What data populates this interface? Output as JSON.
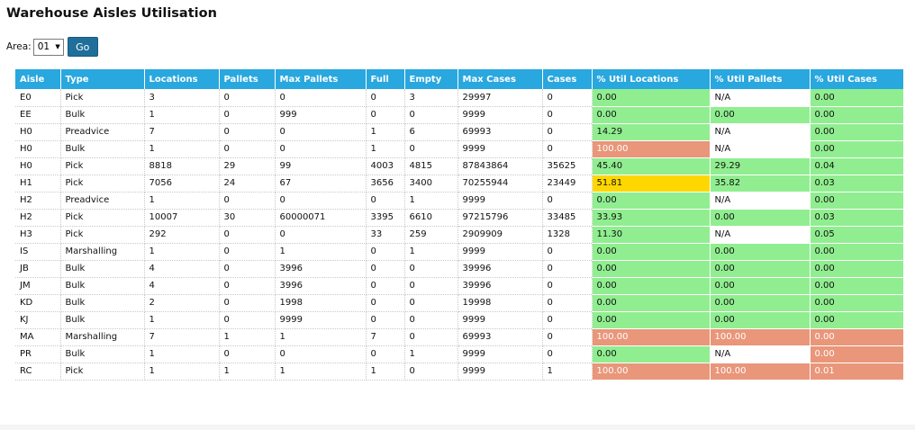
{
  "page": {
    "title": "Warehouse Aisles Utilisation",
    "area_label": "Area:",
    "area_selected": "01",
    "go_label": "Go"
  },
  "colors": {
    "header": "#29a7df",
    "green": "#90ee90",
    "red": "#e9967a",
    "yellow": "#ffd700",
    "button": "#1f6f9a"
  },
  "table": {
    "columns": [
      "Aisle",
      "Type",
      "Locations",
      "Pallets",
      "Max Pallets",
      "Full",
      "Empty",
      "Max Cases",
      "Cases",
      "% Util Locations",
      "% Util Pallets",
      "% Util Cases"
    ],
    "rows": [
      {
        "cells": [
          "E0",
          "Pick",
          "3",
          "0",
          "0",
          "0",
          "3",
          "29997",
          "0",
          "0.00",
          "N/A",
          "0.00"
        ],
        "status": [
          "green",
          "white",
          "green"
        ]
      },
      {
        "cells": [
          "EE",
          "Bulk",
          "1",
          "0",
          "999",
          "0",
          "0",
          "9999",
          "0",
          "0.00",
          "0.00",
          "0.00"
        ],
        "status": [
          "green",
          "green",
          "green"
        ]
      },
      {
        "cells": [
          "H0",
          "Preadvice",
          "7",
          "0",
          "0",
          "1",
          "6",
          "69993",
          "0",
          "14.29",
          "N/A",
          "0.00"
        ],
        "status": [
          "green",
          "white",
          "green"
        ]
      },
      {
        "cells": [
          "H0",
          "Bulk",
          "1",
          "0",
          "0",
          "1",
          "0",
          "9999",
          "0",
          "100.00",
          "N/A",
          "0.00"
        ],
        "status": [
          "red",
          "white",
          "green"
        ]
      },
      {
        "cells": [
          "H0",
          "Pick",
          "8818",
          "29",
          "99",
          "4003",
          "4815",
          "87843864",
          "35625",
          "45.40",
          "29.29",
          "0.04"
        ],
        "status": [
          "green",
          "green",
          "green"
        ]
      },
      {
        "cells": [
          "H1",
          "Pick",
          "7056",
          "24",
          "67",
          "3656",
          "3400",
          "70255944",
          "23449",
          "51.81",
          "35.82",
          "0.03"
        ],
        "status": [
          "yellow",
          "green",
          "green"
        ]
      },
      {
        "cells": [
          "H2",
          "Preadvice",
          "1",
          "0",
          "0",
          "0",
          "1",
          "9999",
          "0",
          "0.00",
          "N/A",
          "0.00"
        ],
        "status": [
          "green",
          "white",
          "green"
        ]
      },
      {
        "cells": [
          "H2",
          "Pick",
          "10007",
          "30",
          "60000071",
          "3395",
          "6610",
          "97215796",
          "33485",
          "33.93",
          "0.00",
          "0.03"
        ],
        "status": [
          "green",
          "green",
          "green"
        ]
      },
      {
        "cells": [
          "H3",
          "Pick",
          "292",
          "0",
          "0",
          "33",
          "259",
          "2909909",
          "1328",
          "11.30",
          "N/A",
          "0.05"
        ],
        "status": [
          "green",
          "white",
          "green"
        ]
      },
      {
        "cells": [
          "IS",
          "Marshalling",
          "1",
          "0",
          "1",
          "0",
          "1",
          "9999",
          "0",
          "0.00",
          "0.00",
          "0.00"
        ],
        "status": [
          "green",
          "green",
          "green"
        ]
      },
      {
        "cells": [
          "JB",
          "Bulk",
          "4",
          "0",
          "3996",
          "0",
          "0",
          "39996",
          "0",
          "0.00",
          "0.00",
          "0.00"
        ],
        "status": [
          "green",
          "green",
          "green"
        ]
      },
      {
        "cells": [
          "JM",
          "Bulk",
          "4",
          "0",
          "3996",
          "0",
          "0",
          "39996",
          "0",
          "0.00",
          "0.00",
          "0.00"
        ],
        "status": [
          "green",
          "green",
          "green"
        ]
      },
      {
        "cells": [
          "KD",
          "Bulk",
          "2",
          "0",
          "1998",
          "0",
          "0",
          "19998",
          "0",
          "0.00",
          "0.00",
          "0.00"
        ],
        "status": [
          "green",
          "green",
          "green"
        ]
      },
      {
        "cells": [
          "KJ",
          "Bulk",
          "1",
          "0",
          "9999",
          "0",
          "0",
          "9999",
          "0",
          "0.00",
          "0.00",
          "0.00"
        ],
        "status": [
          "green",
          "green",
          "green"
        ]
      },
      {
        "cells": [
          "MA",
          "Marshalling",
          "7",
          "1",
          "1",
          "7",
          "0",
          "69993",
          "0",
          "100.00",
          "100.00",
          "0.00"
        ],
        "status": [
          "red",
          "red",
          "red"
        ]
      },
      {
        "cells": [
          "PR",
          "Bulk",
          "1",
          "0",
          "0",
          "0",
          "1",
          "9999",
          "0",
          "0.00",
          "N/A",
          "0.00"
        ],
        "status": [
          "green",
          "white",
          "red"
        ]
      },
      {
        "cells": [
          "RC",
          "Pick",
          "1",
          "1",
          "1",
          "1",
          "0",
          "9999",
          "1",
          "100.00",
          "100.00",
          "0.01"
        ],
        "status": [
          "red",
          "red",
          "red"
        ]
      }
    ]
  }
}
